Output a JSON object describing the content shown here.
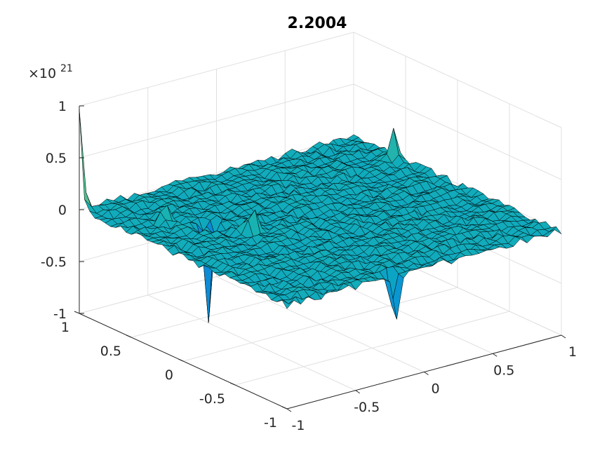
{
  "chart_data": {
    "type": "surface",
    "title": "2.2004",
    "z_exponent_label": "×10",
    "z_exponent": "21",
    "xlim": [
      -1,
      1
    ],
    "ylim": [
      -1,
      1
    ],
    "zlim": [
      -1,
      1
    ],
    "x_ticks": [
      "-1",
      "-0.5",
      "0",
      "0.5",
      "1"
    ],
    "y_ticks": [
      "-1",
      "-0.5",
      "0",
      "0.5",
      "1"
    ],
    "z_ticks": [
      "-1",
      "-0.5",
      "0",
      "0.5",
      "1"
    ],
    "grid": true,
    "colormap": "parula",
    "mesh": 40,
    "features": [
      {
        "x": -1.0,
        "y": 1.0,
        "z": 0.95
      },
      {
        "x": -0.72,
        "y": 0.55,
        "z": 0.2
      },
      {
        "x": -0.55,
        "y": 0.35,
        "z": -0.95
      },
      {
        "x": -0.42,
        "y": 0.12,
        "z": 0.4
      },
      {
        "x": 0.95,
        "y": 0.55,
        "z": 0.3
      },
      {
        "x": -0.2,
        "y": -0.98,
        "z": -0.6
      }
    ],
    "colors": {
      "surface_main": "#2fb4e6",
      "edge": "#000000"
    }
  }
}
